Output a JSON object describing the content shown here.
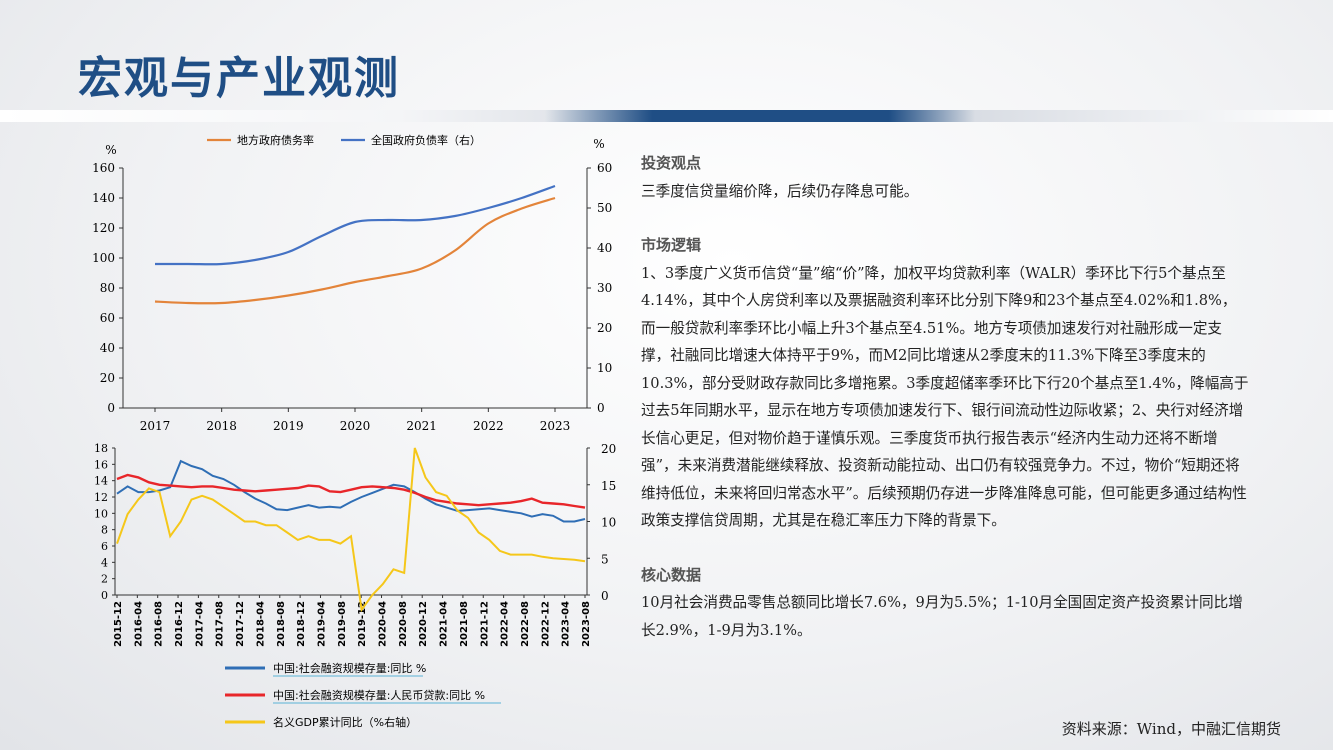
{
  "title": "宏观与产业观测",
  "chart_data": [
    {
      "type": "line",
      "x": [
        "2017",
        "2018",
        "2019",
        "2020",
        "2021",
        "2022",
        "2023"
      ],
      "series": [
        {
          "name": "地方政府债务率",
          "axis": "left",
          "color": "#e3843a",
          "points": [
            [
              0,
              71
            ],
            [
              0.5,
              70
            ],
            [
              1,
              70
            ],
            [
              1.5,
              72
            ],
            [
              2,
              75
            ],
            [
              2.5,
              79
            ],
            [
              3,
              84
            ],
            [
              3.5,
              88
            ],
            [
              4,
              93
            ],
            [
              4.5,
              105
            ],
            [
              5,
              123
            ],
            [
              5.5,
              133
            ],
            [
              6,
              140
            ]
          ]
        },
        {
          "name": "全国政府负债率（右）",
          "axis": "right",
          "color": "#4472c4",
          "points": [
            [
              0,
              36
            ],
            [
              0.5,
              36
            ],
            [
              1,
              36
            ],
            [
              1.5,
              37
            ],
            [
              2,
              39
            ],
            [
              2.5,
              43
            ],
            [
              3,
              46.5
            ],
            [
              3.5,
              47
            ],
            [
              4,
              47
            ],
            [
              4.5,
              48
            ],
            [
              5,
              50
            ],
            [
              5.5,
              52.5
            ],
            [
              6,
              55.5
            ]
          ]
        }
      ],
      "ylim_left": [
        0,
        160
      ],
      "yticks_left": [
        0,
        20,
        40,
        60,
        80,
        100,
        120,
        140,
        160
      ],
      "ylim_right": [
        0,
        60
      ],
      "yticks_right": [
        0,
        10,
        20,
        30,
        40,
        50,
        60
      ],
      "ylabel_left": "%",
      "ylabel_right": "%",
      "legend": "top"
    },
    {
      "type": "line",
      "x_ticks": [
        "2015-12",
        "2016-04",
        "2016-08",
        "2016-12",
        "2017-04",
        "2017-08",
        "2017-12",
        "2018-04",
        "2018-08",
        "2018-12",
        "2019-04",
        "2019-08",
        "2019-12",
        "2020-04",
        "2020-08",
        "2020-12",
        "2021-04",
        "2021-08",
        "2021-12",
        "2022-04",
        "2022-08",
        "2022-12",
        "2023-04",
        "2023-08"
      ],
      "series": [
        {
          "name": "中国:社会融资规模存量:同比 %",
          "axis": "left",
          "color": "#2f6eb5",
          "points": [
            [
              0,
              12.4
            ],
            [
              2,
              13.3
            ],
            [
              4,
              12.6
            ],
            [
              6,
              12.6
            ],
            [
              8,
              12.8
            ],
            [
              10,
              13.2
            ],
            [
              12,
              16.4
            ],
            [
              14,
              15.8
            ],
            [
              16,
              15.4
            ],
            [
              18,
              14.6
            ],
            [
              20,
              14.2
            ],
            [
              22,
              13.5
            ],
            [
              24,
              12.6
            ],
            [
              26,
              11.8
            ],
            [
              28,
              11.2
            ],
            [
              30,
              10.5
            ],
            [
              32,
              10.4
            ],
            [
              34,
              10.7
            ],
            [
              36,
              11.0
            ],
            [
              38,
              10.7
            ],
            [
              40,
              10.8
            ],
            [
              42,
              10.7
            ],
            [
              44,
              11.4
            ],
            [
              46,
              12.0
            ],
            [
              48,
              12.5
            ],
            [
              50,
              13.0
            ],
            [
              52,
              13.5
            ],
            [
              54,
              13.3
            ],
            [
              56,
              12.6
            ],
            [
              58,
              11.8
            ],
            [
              60,
              11.1
            ],
            [
              62,
              10.7
            ],
            [
              64,
              10.3
            ],
            [
              66,
              10.4
            ],
            [
              68,
              10.5
            ],
            [
              70,
              10.6
            ],
            [
              72,
              10.4
            ],
            [
              74,
              10.2
            ],
            [
              76,
              10.0
            ],
            [
              78,
              9.6
            ],
            [
              80,
              9.9
            ],
            [
              82,
              9.7
            ],
            [
              84,
              9.0
            ],
            [
              86,
              9.0
            ],
            [
              88,
              9.3
            ]
          ]
        },
        {
          "name": "中国:社会融资规模存量:人民币贷款:同比 %",
          "axis": "left",
          "color": "#e8262a",
          "points": [
            [
              0,
              14.2
            ],
            [
              2,
              14.7
            ],
            [
              4,
              14.4
            ],
            [
              6,
              13.8
            ],
            [
              8,
              13.5
            ],
            [
              10,
              13.4
            ],
            [
              12,
              13.3
            ],
            [
              14,
              13.2
            ],
            [
              16,
              13.3
            ],
            [
              18,
              13.3
            ],
            [
              20,
              13.1
            ],
            [
              22,
              12.9
            ],
            [
              24,
              12.8
            ],
            [
              26,
              12.7
            ],
            [
              28,
              12.8
            ],
            [
              30,
              12.9
            ],
            [
              32,
              13.0
            ],
            [
              34,
              13.1
            ],
            [
              36,
              13.4
            ],
            [
              38,
              13.3
            ],
            [
              40,
              12.7
            ],
            [
              42,
              12.6
            ],
            [
              44,
              12.9
            ],
            [
              46,
              13.2
            ],
            [
              48,
              13.3
            ],
            [
              50,
              13.2
            ],
            [
              52,
              13.1
            ],
            [
              54,
              12.9
            ],
            [
              56,
              12.5
            ],
            [
              58,
              12.0
            ],
            [
              60,
              11.6
            ],
            [
              62,
              11.4
            ],
            [
              64,
              11.2
            ],
            [
              66,
              11.1
            ],
            [
              68,
              11.0
            ],
            [
              70,
              11.1
            ],
            [
              72,
              11.2
            ],
            [
              74,
              11.3
            ],
            [
              76,
              11.5
            ],
            [
              78,
              11.8
            ],
            [
              80,
              11.3
            ],
            [
              82,
              11.2
            ],
            [
              84,
              11.1
            ],
            [
              86,
              10.9
            ],
            [
              88,
              10.7
            ]
          ]
        },
        {
          "name": "名义GDP累计同比（%右轴）",
          "axis": "right",
          "color": "#f5c71a",
          "points": [
            [
              0,
              7
            ],
            [
              2,
              11
            ],
            [
              4,
              13
            ],
            [
              6,
              14.5
            ],
            [
              8,
              14
            ],
            [
              10,
              8
            ],
            [
              12,
              10
            ],
            [
              14,
              13
            ],
            [
              16,
              13.5
            ],
            [
              18,
              13
            ],
            [
              20,
              12
            ],
            [
              22,
              11
            ],
            [
              24,
              10
            ],
            [
              26,
              10
            ],
            [
              28,
              9.5
            ],
            [
              30,
              9.5
            ],
            [
              32,
              8.5
            ],
            [
              34,
              7.5
            ],
            [
              36,
              8
            ],
            [
              38,
              7.5
            ],
            [
              40,
              7.5
            ],
            [
              42,
              7
            ],
            [
              44,
              8
            ],
            [
              46,
              -2
            ],
            [
              48,
              0
            ],
            [
              50,
              1.5
            ],
            [
              52,
              3.5
            ],
            [
              54,
              3
            ],
            [
              56,
              20
            ],
            [
              58,
              16
            ],
            [
              60,
              14
            ],
            [
              62,
              13.5
            ],
            [
              64,
              11.5
            ],
            [
              66,
              10.5
            ],
            [
              68,
              8.5
            ],
            [
              70,
              7.5
            ],
            [
              72,
              6
            ],
            [
              74,
              5.5
            ],
            [
              76,
              5.5
            ],
            [
              78,
              5.5
            ],
            [
              80,
              5.2
            ],
            [
              82,
              5
            ],
            [
              84,
              4.9
            ],
            [
              86,
              4.8
            ],
            [
              88,
              4.6
            ]
          ]
        }
      ],
      "ylim_left": [
        0,
        18
      ],
      "yticks_left": [
        0,
        2,
        4,
        6,
        8,
        10,
        12,
        14,
        16,
        18
      ],
      "ylim_right": [
        0,
        20
      ],
      "yticks_right": [
        0,
        5,
        10,
        15,
        20
      ],
      "legend": "bottom"
    }
  ],
  "sections": [
    {
      "heading": "投资观点",
      "body": "三季度信贷量缩价降，后续仍存降息可能。"
    },
    {
      "heading": "市场逻辑",
      "body": "1、3季度广义货币信贷“量”缩“价”降，加权平均贷款利率（WALR）季环比下行5个基点至4.14%，其中个人房贷利率以及票据融资利率环比分别下降9和23个基点至4.02%和1.8%，而一般贷款利率季环比小幅上升3个基点至4.51%。地方专项债加速发行对社融形成一定支撑，社融同比增速大体持平于9%，而M2同比增速从2季度末的11.3%下降至3季度末的10.3%，部分受财政存款同比多增拖累。3季度超储率季环比下行20个基点至1.4%，降幅高于过去5年同期水平，显示在地方专项债加速发行下、银行间流动性边际收紧；2、央行对经济增长信心更足，但对物价趋于谨慎乐观。三季度货币执行报告表示“经济内生动力还将不断增强”，未来消费潜能继续释放、投资新动能拉动、出口仍有较强竞争力。不过，物价“短期还将维持低位，未来将回归常态水平”。后续预期仍存进一步降准降息可能，但可能更多通过结构性政策支撑信贷周期，尤其是在稳汇率压力下降的背景下。"
    },
    {
      "heading": "核心数据",
      "body": "10月社会消费品零售总额同比增长7.6%，9月为5.5%；1-10月全国固定资产投资累计同比增长2.9%，1-9月为3.1%。"
    }
  ],
  "source": "资料来源：Wind，中融汇信期货"
}
